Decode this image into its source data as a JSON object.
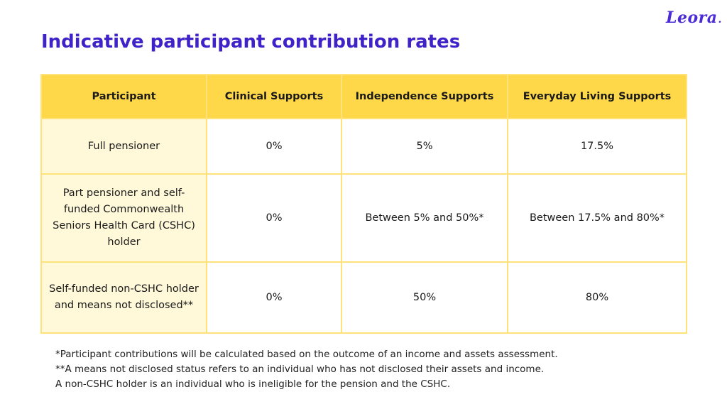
{
  "brand": {
    "logo_text": "Leora",
    "logo_dot": ".",
    "accent_color": "#3f22c8",
    "header_fill": "#ffd84a",
    "first_column_fill": "#fff8d9"
  },
  "page": {
    "title": "Indicative participant contribution rates"
  },
  "table": {
    "headers": [
      "Participant",
      "Clinical Supports",
      "Independence Supports",
      "Everyday Living Supports"
    ],
    "rows": [
      [
        "Full pensioner",
        "0%",
        "5%",
        "17.5%"
      ],
      [
        "Part pensioner and self-funded Commonwealth Seniors Health Card (CSHC) holder",
        "0%",
        "Between 5% and 50%*",
        "Between 17.5% and 80%*"
      ],
      [
        "Self-funded non-CSHC holder and means not disclosed**",
        "0%",
        "50%",
        "80%"
      ]
    ]
  },
  "footnotes": [
    "*Participant contributions will be calculated based on the outcome of an income and assets assessment.",
    "**A means not disclosed status refers to an individual who has not disclosed their assets and income.",
    "A non-CSHC holder is an individual who is ineligible for the pension and the CSHC."
  ]
}
